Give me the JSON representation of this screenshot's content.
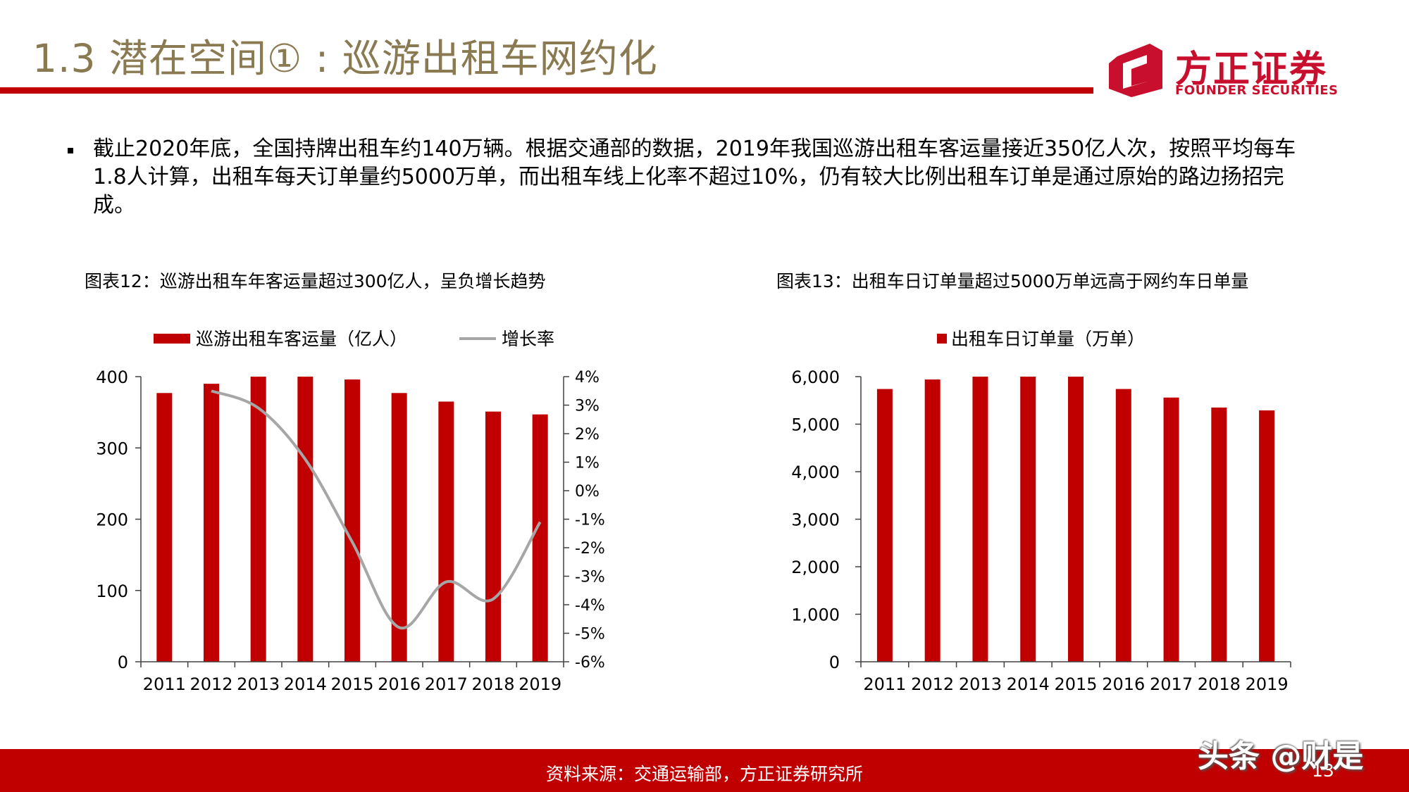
{
  "slide": {
    "title": "1.3 潜在空间① : 巡游出租车网约化",
    "logo": {
      "cn": "方正证券",
      "en": "FOUNDER SECURITIES"
    },
    "bullet": "截止2020年底，全国持牌出租车约140万辆。根据交通部的数据，2019年我国巡游出租车客运量接近350亿人次，按照平均每车1.8人计算，出租车每天订单量约5000万单，而出租车线上化率不超过10%，仍有较大比例出租车订单是通过原始的路边扬招完成。",
    "footer": {
      "source": "资料来源：交通运输部，方正证券研究所",
      "page": "13"
    },
    "watermark": "头条 @财是",
    "colors": {
      "accent": "#c00000",
      "title": "#8a7a52",
      "line": "#a6a6a6"
    }
  },
  "chart_data": [
    {
      "type": "bar",
      "title": "图表12：巡游出租车年客运量超过300亿人，呈负增长趋势",
      "categories": [
        "2011",
        "2012",
        "2013",
        "2014",
        "2015",
        "2016",
        "2017",
        "2018",
        "2019"
      ],
      "series": [
        {
          "name": "巡游出租车客运量（亿人）",
          "type": "bar",
          "axis": "left",
          "values": [
            377,
            390,
            401,
            406,
            396,
            377,
            365,
            351,
            347
          ]
        },
        {
          "name": "增长率",
          "type": "line",
          "axis": "right",
          "values": [
            null,
            3.5,
            2.9,
            1.1,
            -1.8,
            -4.8,
            -3.2,
            -3.8,
            -1.1
          ]
        }
      ],
      "y_left": {
        "min": 0,
        "max": 400,
        "ticks": [
          0,
          100,
          200,
          300,
          400
        ]
      },
      "y_right": {
        "min": -6,
        "max": 4,
        "ticks": [
          "-6%",
          "-5%",
          "-4%",
          "-3%",
          "-2%",
          "-1%",
          "0%",
          "1%",
          "2%",
          "3%",
          "4%"
        ]
      },
      "legend": "top",
      "grid": false
    },
    {
      "type": "bar",
      "title": "图表13：出租车日订单量超过5000万单远高于网约车日单量",
      "categories": [
        "2011",
        "2012",
        "2013",
        "2014",
        "2015",
        "2016",
        "2017",
        "2018",
        "2019"
      ],
      "series": [
        {
          "name": "出租车日订单量（万单）",
          "values": [
            5740,
            5940,
            6110,
            6180,
            6030,
            5740,
            5560,
            5350,
            5290
          ]
        }
      ],
      "y_left": {
        "min": 0,
        "max": 6000,
        "ticks": [
          "0",
          "1,000",
          "2,000",
          "3,000",
          "4,000",
          "5,000",
          "6,000"
        ]
      },
      "legend": "top",
      "grid": false
    }
  ]
}
